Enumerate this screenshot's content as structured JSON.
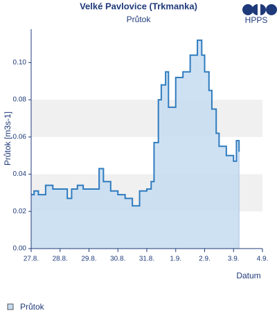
{
  "chart_data": {
    "type": "step-area",
    "title": "Velké Pavlovice (Trkmanka)",
    "subtitle": "Průtok",
    "logo": "HPPS",
    "y_label": "Průtok [m3s-1]",
    "x_label": "Datum",
    "series": [
      {
        "name": "Průtok",
        "color": "#2e7bbf",
        "fill": "#c5dcf1",
        "x": [
          0,
          0.1,
          0.25,
          0.5,
          0.75,
          1.0,
          1.25,
          1.4,
          1.6,
          1.8,
          2.0,
          2.25,
          2.35,
          2.5,
          2.75,
          3.0,
          3.25,
          3.5,
          3.75,
          4.0,
          4.15,
          4.25,
          4.4,
          4.5,
          4.65,
          4.75,
          5.0,
          5.25,
          5.5,
          5.75,
          5.9,
          6.0,
          6.15,
          6.25,
          6.4,
          6.5,
          6.75,
          7.0,
          7.1,
          7.19
        ],
        "values": [
          0.029,
          0.031,
          0.029,
          0.034,
          0.032,
          0.032,
          0.027,
          0.032,
          0.034,
          0.032,
          0.032,
          0.032,
          0.043,
          0.036,
          0.031,
          0.029,
          0.027,
          0.023,
          0.031,
          0.032,
          0.036,
          0.057,
          0.08,
          0.088,
          0.095,
          0.076,
          0.092,
          0.095,
          0.104,
          0.112,
          0.104,
          0.095,
          0.085,
          0.075,
          0.062,
          0.055,
          0.05,
          0.047,
          0.058,
          0.052
        ]
      }
    ],
    "xlim": [
      0,
      8
    ],
    "xticks": [
      {
        "value": 0,
        "label": "27.8."
      },
      {
        "value": 1,
        "label": "28.8."
      },
      {
        "value": 2,
        "label": "29.8."
      },
      {
        "value": 3,
        "label": "30.8."
      },
      {
        "value": 4,
        "label": "31.8."
      },
      {
        "value": 5,
        "label": "1.9."
      },
      {
        "value": 6,
        "label": "2.9."
      },
      {
        "value": 7,
        "label": "3.9."
      },
      {
        "value": 8,
        "label": "4.9."
      }
    ],
    "ylim": [
      0,
      0.118
    ],
    "yticks": [
      {
        "value": 0,
        "label": "0.00"
      },
      {
        "value": 0.02,
        "label": "0.02"
      },
      {
        "value": 0.04,
        "label": "0.04"
      },
      {
        "value": 0.06,
        "label": "0.06"
      },
      {
        "value": 0.08,
        "label": "0.08"
      },
      {
        "value": 0.1,
        "label": "0.10"
      }
    ],
    "bands": true
  }
}
